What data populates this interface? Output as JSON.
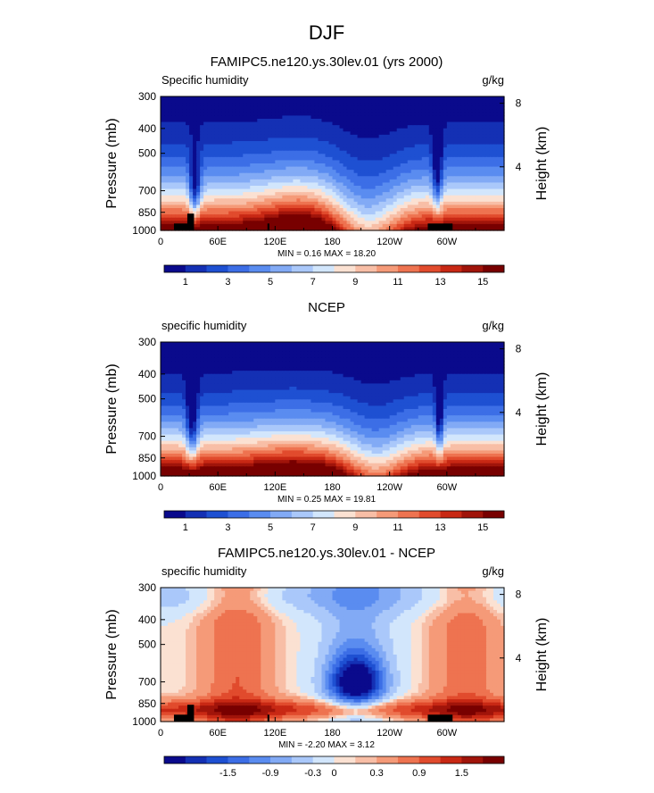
{
  "figure": {
    "title": "DJF"
  },
  "colors": {
    "abs_scale": [
      "#0a0a8c",
      "#1430b4",
      "#1e50d2",
      "#3c6ee6",
      "#5a8cf0",
      "#82aaf5",
      "#aac8fa",
      "#d2e6fc",
      "#fbe1d2",
      "#f8bea6",
      "#f59a78",
      "#ee7350",
      "#e14b2d",
      "#c82814",
      "#a0140a",
      "#780000"
    ],
    "diff_scale": [
      "#0a0a8c",
      "#1430b4",
      "#1e50d2",
      "#3c6ee6",
      "#5a8cf0",
      "#82aaf5",
      "#aac8fa",
      "#d2e6fc",
      "#fbe1d2",
      "#f8bea6",
      "#f59a78",
      "#ee7350",
      "#e14b2d",
      "#c82814",
      "#a0140a",
      "#780000"
    ],
    "terrain": "#000000"
  },
  "chart_data": [
    {
      "type": "heatmap",
      "title": "FAMIPC5.ne120.ys.30lev.01 (yrs 2000)",
      "left_label": "Specific humidity",
      "units": "g/kg",
      "ylabel": "Pressure (mb)",
      "ylabel_right": "Height (km)",
      "y_ticks": [
        "300",
        "400",
        "500",
        "700",
        "850",
        "1000"
      ],
      "y_tick_values": [
        300,
        400,
        500,
        700,
        850,
        1000
      ],
      "y_right_ticks": [
        "8",
        "4"
      ],
      "y_right_values": [
        8,
        4
      ],
      "x_ticks": [
        "0",
        "60E",
        "120E",
        "180",
        "120W",
        "60W"
      ],
      "x_tick_values": [
        0,
        60,
        120,
        180,
        240,
        300
      ],
      "xlim": [
        0,
        360
      ],
      "ylim": [
        1000,
        300
      ],
      "stats": "MIN =    0.16   MAX =   18.20",
      "min": 0.16,
      "max": 18.2,
      "colorbar_labels": [
        "1",
        "3",
        "5",
        "7",
        "9",
        "11",
        "13",
        "15"
      ],
      "colorbar_values": [
        1,
        3,
        5,
        7,
        9,
        11,
        13,
        15
      ],
      "colorbar_levels": [
        0,
        1,
        2,
        3,
        4,
        5,
        6,
        7,
        8,
        9,
        10,
        11,
        12,
        13,
        14,
        15,
        16
      ]
    },
    {
      "type": "heatmap",
      "title": "NCEP",
      "left_label": "specific humidity",
      "units": "g/kg",
      "ylabel": "Pressure (mb)",
      "ylabel_right": "Height (km)",
      "y_ticks": [
        "300",
        "400",
        "500",
        "700",
        "850",
        "1000"
      ],
      "y_tick_values": [
        300,
        400,
        500,
        700,
        850,
        1000
      ],
      "y_right_ticks": [
        "8",
        "4"
      ],
      "y_right_values": [
        8,
        4
      ],
      "x_ticks": [
        "0",
        "60E",
        "120E",
        "180",
        "120W",
        "60W"
      ],
      "x_tick_values": [
        0,
        60,
        120,
        180,
        240,
        300
      ],
      "xlim": [
        0,
        360
      ],
      "ylim": [
        1000,
        300
      ],
      "stats": "MIN =    0.25   MAX =   19.81",
      "min": 0.25,
      "max": 19.81,
      "colorbar_labels": [
        "1",
        "3",
        "5",
        "7",
        "9",
        "11",
        "13",
        "15"
      ],
      "colorbar_values": [
        1,
        3,
        5,
        7,
        9,
        11,
        13,
        15
      ],
      "colorbar_levels": [
        0,
        1,
        2,
        3,
        4,
        5,
        6,
        7,
        8,
        9,
        10,
        11,
        12,
        13,
        14,
        15,
        16
      ]
    },
    {
      "type": "heatmap",
      "title": "FAMIPC5.ne120.ys.30lev.01 - NCEP",
      "left_label": "specific humidity",
      "units": "g/kg",
      "ylabel": "Pressure (mb)",
      "ylabel_right": "Height (km)",
      "y_ticks": [
        "300",
        "400",
        "500",
        "700",
        "850",
        "1000"
      ],
      "y_tick_values": [
        300,
        400,
        500,
        700,
        850,
        1000
      ],
      "y_right_ticks": [
        "8",
        "4"
      ],
      "y_right_values": [
        8,
        4
      ],
      "x_ticks": [
        "0",
        "60E",
        "120E",
        "180",
        "120W",
        "60W"
      ],
      "x_tick_values": [
        0,
        60,
        120,
        180,
        240,
        300
      ],
      "xlim": [
        0,
        360
      ],
      "ylim": [
        1000,
        300
      ],
      "stats": "MIN =   -2.20   MAX =    3.12",
      "min": -2.2,
      "max": 3.12,
      "colorbar_labels": [
        "-1.5",
        "-0.9",
        "-0.3",
        "0",
        "0.3",
        "0.9",
        "1.5"
      ],
      "colorbar_values": [
        -1.5,
        -0.9,
        -0.3,
        0,
        0.3,
        0.9,
        1.5
      ],
      "colorbar_levels": [
        -2.4,
        -2.1,
        -1.8,
        -1.5,
        -1.2,
        -0.9,
        -0.6,
        -0.3,
        0,
        0.15,
        0.3,
        0.6,
        0.9,
        1.2,
        1.5,
        1.8,
        2.1
      ]
    }
  ]
}
